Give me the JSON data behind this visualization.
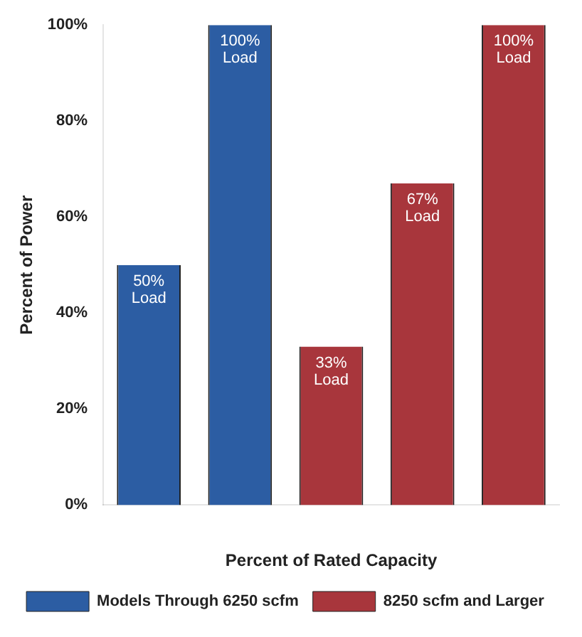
{
  "chart_data": {
    "type": "bar",
    "xlabel": "Percent of Rated Capacity",
    "ylabel": "Percent of Power",
    "categories": [
      null,
      null,
      null,
      null,
      null
    ],
    "series": [
      {
        "name": "Models Through 6250 scfm",
        "color": "#2c5da3",
        "values": [
          50,
          100,
          null,
          null,
          null
        ],
        "value_labels": [
          "50%\nLoad",
          "100%\nLoad",
          null,
          null,
          null
        ]
      },
      {
        "name": "8250 scfm and Larger",
        "color": "#a8363c",
        "values": [
          null,
          null,
          33,
          67,
          100
        ],
        "value_labels": [
          null,
          null,
          "33%\nLoad",
          "67%\nLoad",
          "100%\nLoad"
        ]
      }
    ],
    "ylim": [
      0,
      100
    ],
    "yticks": [
      {
        "value": 0,
        "label": "0%"
      },
      {
        "value": 20,
        "label": "20%"
      },
      {
        "value": 40,
        "label": "40%"
      },
      {
        "value": 60,
        "label": "60%"
      },
      {
        "value": 80,
        "label": "80%"
      },
      {
        "value": 100,
        "label": "100%"
      }
    ],
    "grid": false,
    "legend": "bottom"
  }
}
